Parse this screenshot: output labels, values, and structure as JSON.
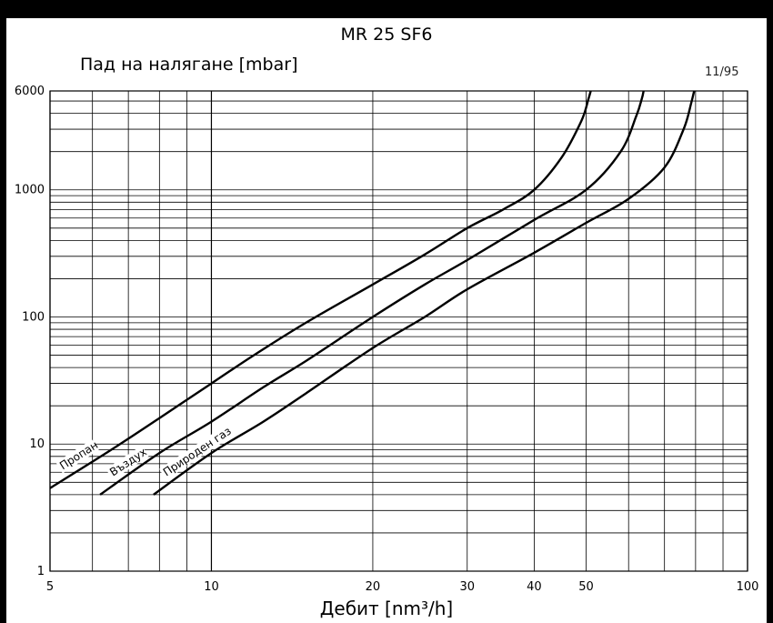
{
  "chart_data": {
    "type": "line",
    "title": "MR 25 SF6",
    "ylabel": "Пад на налягане [mbar]",
    "xlabel": "Дебит [nm³/h]",
    "code": "11/95",
    "xscale": "log",
    "yscale": "log",
    "xlim": [
      5,
      100
    ],
    "ylim": [
      1,
      6000
    ],
    "grid": true,
    "xticks": [
      5,
      10,
      20,
      30,
      40,
      50,
      100
    ],
    "xtick_labels": [
      "5",
      "10",
      "20",
      "30",
      "40",
      "50",
      "100"
    ],
    "yticks": [
      1,
      10,
      100,
      1000,
      6000
    ],
    "ytick_labels": [
      "1",
      "10",
      "100",
      "1000",
      "6000"
    ],
    "series": [
      {
        "name": "Пропан",
        "x": [
          5.0,
          6.5,
          8.0,
          10.0,
          12.0,
          15.0,
          20.0,
          25.0,
          30.0,
          35.0,
          40.0,
          45.0,
          49.0,
          50.5,
          51.0
        ],
        "y": [
          4.5,
          9,
          16,
          30,
          50,
          90,
          180,
          310,
          500,
          700,
          1000,
          1800,
          3500,
          5200,
          6000
        ]
      },
      {
        "name": "Въздух",
        "x": [
          6.2,
          8.0,
          10.0,
          12.5,
          15.0,
          20.0,
          25.0,
          30.0,
          40.0,
          50.0,
          58.0,
          62.0,
          63.5,
          64.0
        ],
        "y": [
          4.0,
          8.5,
          15,
          28,
          45,
          100,
          180,
          280,
          580,
          1000,
          2000,
          3800,
          5200,
          6000
        ]
      },
      {
        "name": "Природен газ",
        "x": [
          7.8,
          10.0,
          12.5,
          15.0,
          20.0,
          25.0,
          30.0,
          40.0,
          50.0,
          60.0,
          70.0,
          76.0,
          78.5,
          79.5
        ],
        "y": [
          4.0,
          8.5,
          15,
          25,
          57,
          100,
          165,
          320,
          550,
          850,
          1500,
          3000,
          4800,
          6000
        ]
      }
    ]
  }
}
